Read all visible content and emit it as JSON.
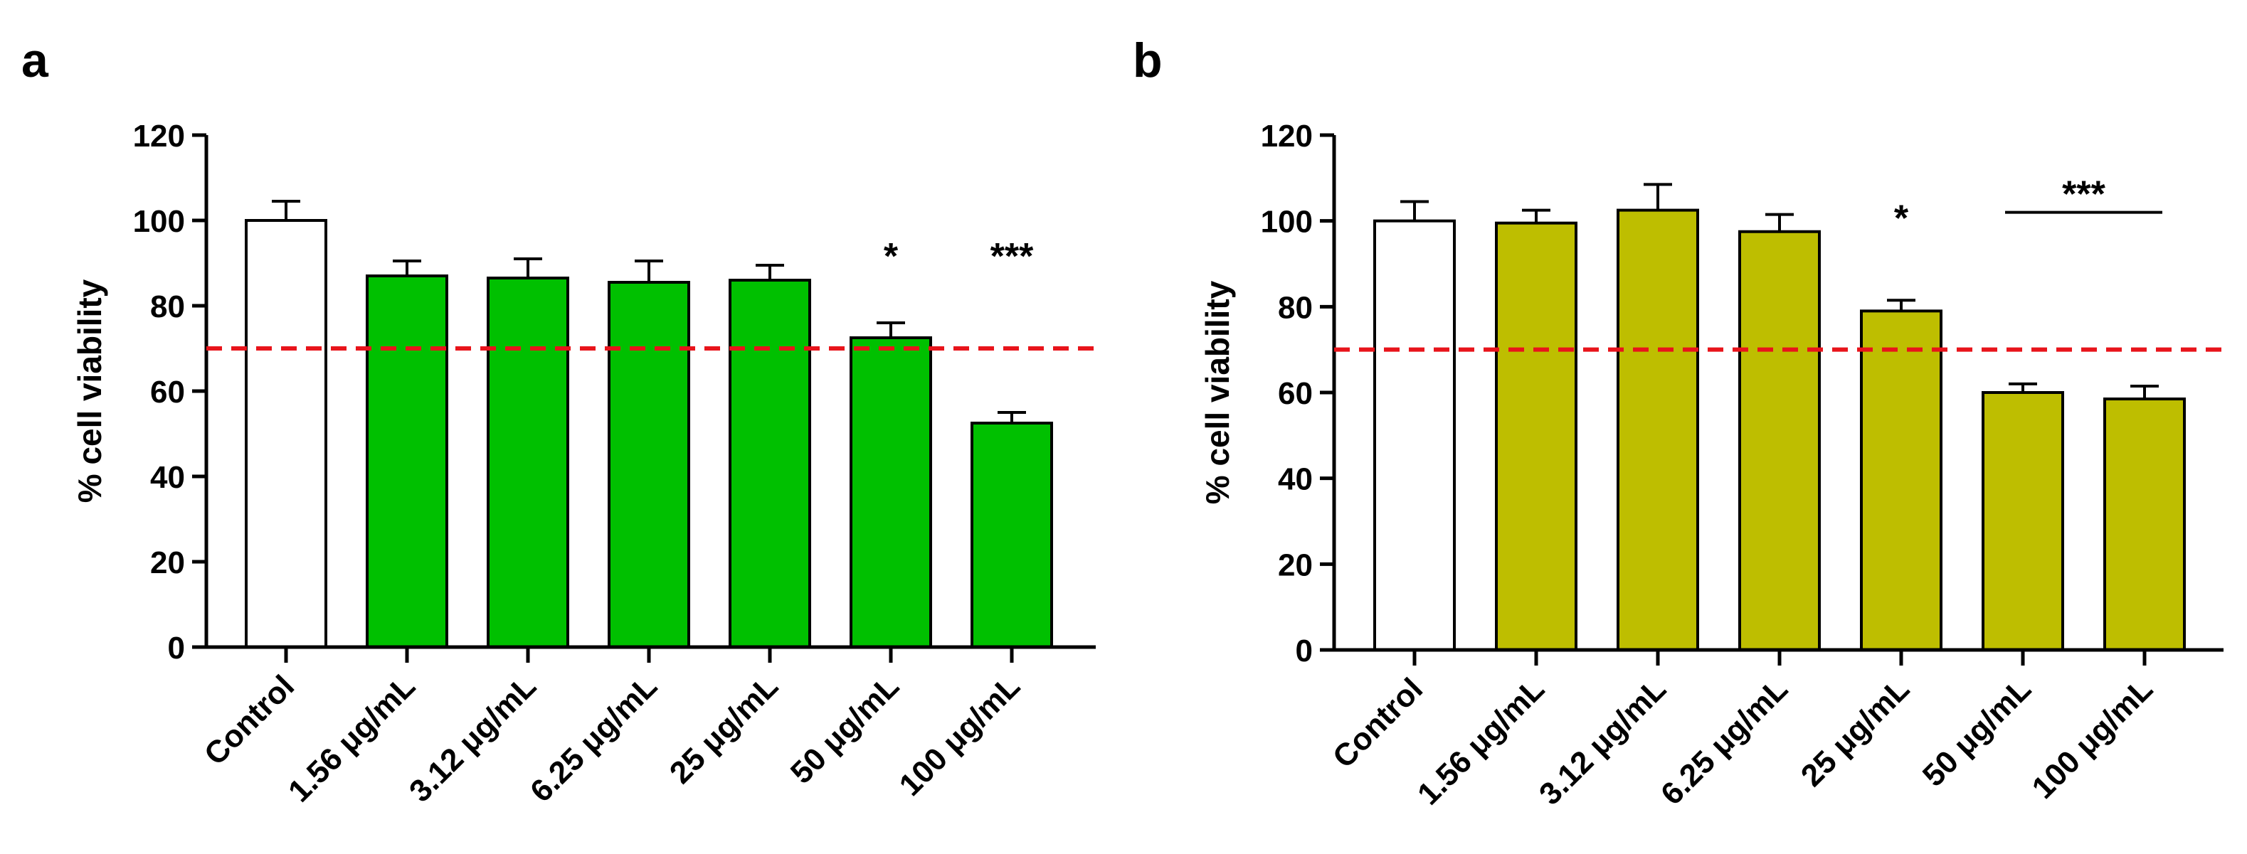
{
  "chart_data": [
    {
      "type": "bar",
      "panel_label": "a",
      "title": "",
      "xlabel": "",
      "ylabel": "% cell viability",
      "ylim": [
        0,
        120
      ],
      "yticks": [
        "0",
        "20",
        "40",
        "60",
        "80",
        "100",
        "120"
      ],
      "categories": [
        "Control",
        "1.56 μg/mL",
        "3.12 μg/mL",
        "6.25 μg/mL",
        "25 μg/mL",
        "50 μg/mL",
        "100 μg/mL"
      ],
      "values": [
        100,
        87,
        86.5,
        85.5,
        86,
        72.5,
        52.5
      ],
      "errors": [
        4.5,
        3.5,
        4.5,
        5,
        3.5,
        3.5,
        2.5
      ],
      "bar_colors": [
        "#ffffff",
        "#00c000",
        "#00c000",
        "#00c000",
        "#00c000",
        "#00c000",
        "#00c000"
      ],
      "threshold": 70,
      "threshold_color": "#e8141b",
      "significance": [
        {
          "category_index": 5,
          "label": "*",
          "y": 92,
          "bracket": false
        },
        {
          "category_index": 6,
          "label": "***",
          "y": 92,
          "bracket": false
        }
      ]
    },
    {
      "type": "bar",
      "panel_label": "b",
      "title": "",
      "xlabel": "",
      "ylabel": "% cell viability",
      "ylim": [
        0,
        120
      ],
      "yticks": [
        "0",
        "20",
        "40",
        "60",
        "80",
        "100",
        "120"
      ],
      "categories": [
        "Control",
        "1.56 μg/mL",
        "3.12 μg/mL",
        "6.25 μg/mL",
        "25 μg/mL",
        "50 μg/mL",
        "100 μg/mL"
      ],
      "values": [
        100,
        99.5,
        102.5,
        97.5,
        79,
        60,
        58.5
      ],
      "errors": [
        4.5,
        3,
        6,
        4,
        2.5,
        2,
        3
      ],
      "bar_colors": [
        "#ffffff",
        "#bebe00",
        "#bebe00",
        "#bebe00",
        "#bebe00",
        "#bebe00",
        "#bebe00"
      ],
      "threshold": 70,
      "threshold_color": "#e8141b",
      "significance": [
        {
          "category_index": 4,
          "label": "*",
          "y": 101,
          "bracket": false
        },
        {
          "category_index": 5,
          "category_end_index": 6,
          "label": "***",
          "y": 102,
          "bracket": true
        }
      ]
    }
  ]
}
